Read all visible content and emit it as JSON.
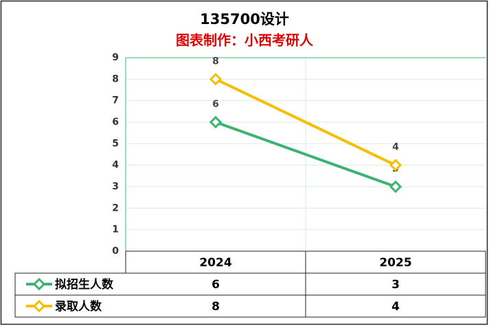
{
  "chart_data": {
    "type": "line",
    "title": "135700设计",
    "subtitle": "图表制作：小西考研人",
    "categories": [
      "2024",
      "2025"
    ],
    "series": [
      {
        "name": "拟招生人数",
        "color": "#3cb371",
        "values": [
          6,
          3
        ]
      },
      {
        "name": "录取人数",
        "color": "#f5bf00",
        "values": [
          8,
          4
        ]
      }
    ],
    "ylim": [
      0,
      9
    ],
    "yticks": [
      0,
      1,
      2,
      3,
      4,
      5,
      6,
      7,
      8,
      9
    ],
    "grid": true,
    "data_table": true
  }
}
